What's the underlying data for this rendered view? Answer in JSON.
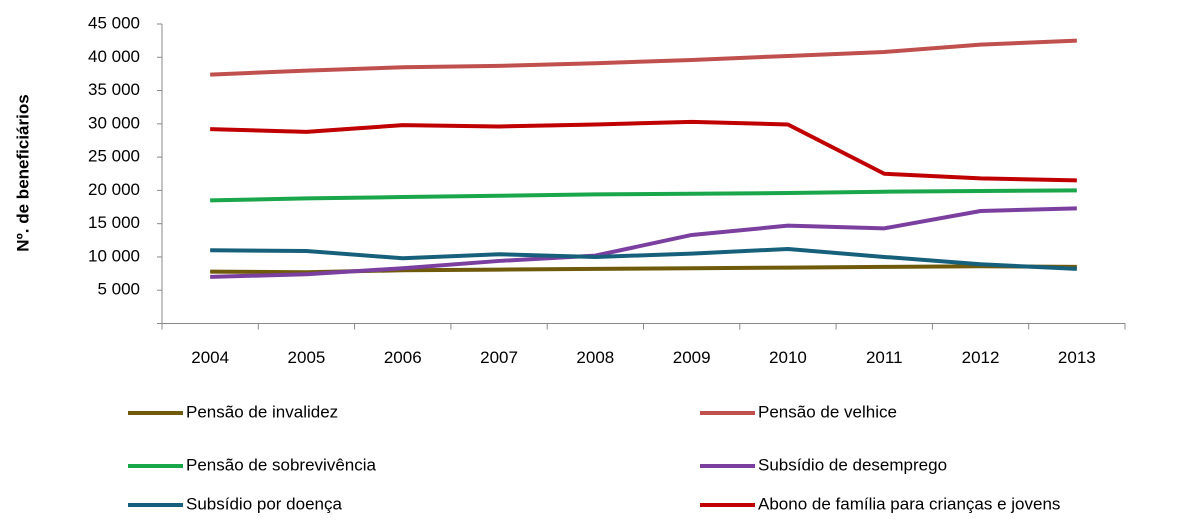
{
  "chart_data": {
    "type": "line",
    "ylabel": "Nº. de beneficiários",
    "categories": [
      "2004",
      "2005",
      "2006",
      "2007",
      "2008",
      "2009",
      "2010",
      "2011",
      "2012",
      "2013"
    ],
    "series": [
      {
        "name": "Pensão de invalidez",
        "color": "#6f5a0c",
        "values": [
          7800,
          7700,
          8000,
          8100,
          8200,
          8300,
          8400,
          8500,
          8600,
          8500
        ]
      },
      {
        "name": "Pensão de velhice",
        "color": "#c0504d",
        "values": [
          37400,
          38000,
          38500,
          38700,
          39100,
          39600,
          40200,
          40800,
          41900,
          42500
        ]
      },
      {
        "name": "Pensão de sobrevivência",
        "color": "#1aa64a",
        "values": [
          18500,
          18800,
          19000,
          19200,
          19400,
          19500,
          19600,
          19800,
          19900,
          20000
        ]
      },
      {
        "name": "Subsídio de desemprego",
        "color": "#7b3fa0",
        "values": [
          7000,
          7400,
          8300,
          9400,
          10200,
          13300,
          14700,
          14300,
          16900,
          17300
        ]
      },
      {
        "name": "Subsídio por doença",
        "color": "#17607c",
        "values": [
          11000,
          10900,
          9800,
          10400,
          10000,
          10500,
          11200,
          10000,
          8900,
          8200
        ]
      },
      {
        "name": "Abono de família para crianças e jovens",
        "color": "#c00000",
        "values": [
          29200,
          28800,
          29800,
          29600,
          29900,
          30300,
          29900,
          22500,
          21800,
          21500
        ]
      }
    ],
    "ylim": [
      0,
      45000
    ],
    "yticks": [
      {
        "value": 5000,
        "label": "5 000"
      },
      {
        "value": 10000,
        "label": "10 000"
      },
      {
        "value": 15000,
        "label": "15 000"
      },
      {
        "value": 20000,
        "label": "20 000"
      },
      {
        "value": 25000,
        "label": "25 000"
      },
      {
        "value": 30000,
        "label": "30 000"
      },
      {
        "value": 35000,
        "label": "35 000"
      },
      {
        "value": 40000,
        "label": "40 000"
      },
      {
        "value": 45000,
        "label": "45 000"
      }
    ],
    "grid": false,
    "legend": "bottom"
  }
}
